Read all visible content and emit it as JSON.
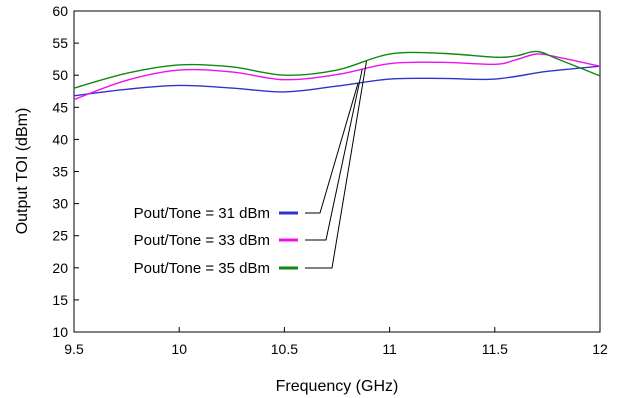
{
  "chart_data": {
    "type": "line",
    "xlabel": "Frequency (GHz)",
    "ylabel": "Output TOI (dBm)",
    "xlim": [
      9.5,
      12
    ],
    "ylim": [
      10,
      60
    ],
    "xticks": [
      9.5,
      10,
      10.5,
      11,
      11.5,
      12
    ],
    "yticks": [
      10,
      15,
      20,
      25,
      30,
      35,
      40,
      45,
      50,
      55,
      60
    ],
    "x_tick_labels": [
      "9.5",
      "10",
      "10.5",
      "11",
      "11.5",
      "12"
    ],
    "y_tick_labels": [
      "10",
      "15",
      "20",
      "25",
      "30",
      "35",
      "40",
      "45",
      "50",
      "55",
      "60"
    ],
    "grid": false,
    "legend": "left-lower-middle",
    "series": [
      {
        "name": "Pout/Tone = 31 dBm",
        "color": "#3333cc",
        "x": [
          9.5,
          9.75,
          10.0,
          10.25,
          10.5,
          10.75,
          11.0,
          11.25,
          11.5,
          11.75,
          12.0
        ],
        "y": [
          46.8,
          47.8,
          48.4,
          48.0,
          47.4,
          48.3,
          49.4,
          49.5,
          49.4,
          50.6,
          51.4
        ]
      },
      {
        "name": "Pout/Tone = 33 dBm",
        "color": "#ee11ee",
        "x": [
          9.5,
          9.75,
          10.0,
          10.25,
          10.5,
          10.75,
          11.0,
          11.25,
          11.5,
          11.6,
          11.7,
          11.8,
          12.0
        ],
        "y": [
          46.2,
          49.2,
          50.8,
          50.5,
          49.3,
          50.1,
          51.8,
          52.0,
          51.7,
          52.4,
          53.3,
          52.8,
          51.4
        ]
      },
      {
        "name": "Pout/Tone = 35 dBm",
        "color": "#118811",
        "x": [
          9.5,
          9.75,
          10.0,
          10.25,
          10.5,
          10.75,
          11.0,
          11.25,
          11.5,
          11.6,
          11.7,
          11.8,
          12.0
        ],
        "y": [
          48.0,
          50.3,
          51.6,
          51.3,
          50.0,
          50.8,
          53.3,
          53.4,
          52.8,
          53.0,
          53.7,
          52.5,
          49.9
        ]
      }
    ]
  }
}
